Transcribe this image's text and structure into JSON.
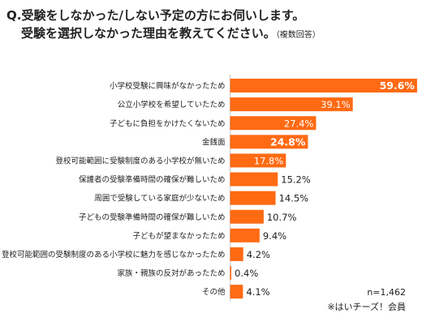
{
  "title": {
    "line1": "Q.受験をしなかった/しない予定の方にお伺いします。",
    "line2": "受験を選択しなかった理由を教えてください。",
    "note": "（複数回答）"
  },
  "footer": {
    "n": "n=1,462",
    "source": "※はいチーズ！会員"
  },
  "colors": {
    "bar": "#ff6a13",
    "label_inside": "#ffffff",
    "label_outside": "#222222",
    "axis": "#cccccc"
  },
  "chart_data": {
    "type": "bar",
    "orientation": "horizontal",
    "categories": [
      "小学校受験に興味がなかったため",
      "公立小学校を希望していたため",
      "子どもに負担をかけたくないため",
      "金銭面",
      "登校可能範囲に受験制度のある小学校が無いため",
      "保護者の受験準備時間の確保が難しいため",
      "周囲で受験している家庭が少ないため",
      "子どもの受験準備時間の確保が難しいため",
      "子どもが望まなかったため",
      "登校可能範囲の受験制度のある小学校に魅力を感じなかったため",
      "家族・親族の反対があったため",
      "その他"
    ],
    "values": [
      59.6,
      39.1,
      27.4,
      24.8,
      17.8,
      15.2,
      14.5,
      10.7,
      9.4,
      4.2,
      0.4,
      4.1
    ],
    "labels": [
      "59.6%",
      "39.1%",
      "27.4%",
      "24.8%",
      "17.8%",
      "15.2%",
      "14.5%",
      "10.7%",
      "9.4%",
      "4.2%",
      "0.4%",
      "4.1%"
    ],
    "bold_labels": [
      true,
      false,
      false,
      true,
      false,
      false,
      false,
      false,
      false,
      false,
      false,
      false
    ],
    "xlim": [
      0,
      60
    ],
    "grid": false,
    "legend": "none"
  }
}
